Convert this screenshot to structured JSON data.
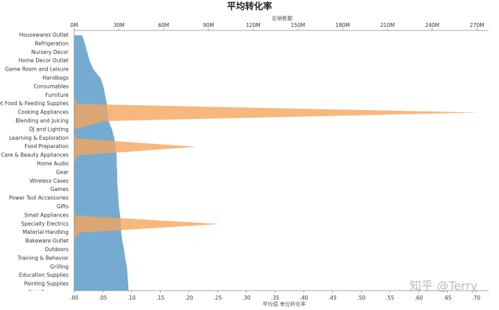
{
  "chart_data": {
    "type": "area",
    "title": "平均转化率",
    "x2_label": "总销售额",
    "x_label": "平均值 单位转化率",
    "watermark": "知乎 @Terry",
    "categories": [
      "Housewares Outlet",
      "Refrigeration",
      "Nursery Decor",
      "Home Decor Outlet",
      "Game Room and Leisure",
      "Handbags",
      "Consumables",
      "Furniture",
      "Pet Food & Feeding Supplies",
      "Cooking Appliances",
      "Blending and Juicing",
      "DJ and Lighting",
      "Learning & Exploration",
      "Food Preparation",
      "Hair Care & Beauty Appliances",
      "Home Audio",
      "Gear",
      "Wireless Cases",
      "Games",
      "Power Tool Accessories",
      "Gifts",
      "Small Appliances",
      "Specialty Electrics",
      "Material Handling",
      "Bakeware Outlet",
      "Outdoors",
      "Training & Behavior",
      "Grilling",
      "Education Supplies",
      "Painting Supplies",
      "Cold Beverages"
    ],
    "series": [
      {
        "color": "#6ea6cf",
        "axis": "x",
        "values": [
          0.014,
          0.019,
          0.023,
          0.027,
          0.034,
          0.046,
          0.051,
          0.054,
          0.057,
          0.058,
          0.06,
          0.066,
          0.07,
          0.072,
          0.074,
          0.074,
          0.075,
          0.075,
          0.076,
          0.077,
          0.078,
          0.08,
          0.081,
          0.082,
          0.084,
          0.087,
          0.089,
          0.092,
          0.093,
          0.094,
          0.095
        ]
      },
      {
        "color": "#f5a45a",
        "axis": "x2",
        "values": [
          0,
          0,
          0,
          0,
          0,
          0,
          0,
          0,
          2,
          272,
          20,
          0,
          1,
          82,
          2,
          0,
          0,
          0,
          0,
          0,
          0,
          1,
          98,
          3,
          0,
          0,
          0,
          0,
          0,
          0,
          0
        ]
      }
    ],
    "xlim": [
      0,
      0.7217
    ],
    "xticks": [
      {
        "value": 0,
        "label": ".00"
      },
      {
        "value": 0.05,
        "label": ".05"
      },
      {
        "value": 0.1,
        "label": ".10"
      },
      {
        "value": 0.15,
        "label": ".15"
      },
      {
        "value": 0.2,
        "label": ".20"
      },
      {
        "value": 0.25,
        "label": ".25"
      },
      {
        "value": 0.3,
        "label": ".30"
      },
      {
        "value": 0.35,
        "label": ".35"
      },
      {
        "value": 0.4,
        "label": ".40"
      },
      {
        "value": 0.45,
        "label": ".45"
      },
      {
        "value": 0.5,
        "label": ".50"
      },
      {
        "value": 0.55,
        "label": ".55"
      },
      {
        "value": 0.6,
        "label": ".60"
      },
      {
        "value": 0.65,
        "label": ".65"
      },
      {
        "value": 0.7,
        "label": ".70"
      }
    ],
    "x2lim": [
      0,
      277.8
    ],
    "x2ticks": [
      {
        "value": 0,
        "label": "0M"
      },
      {
        "value": 30,
        "label": "30M"
      },
      {
        "value": 60,
        "label": "60M"
      },
      {
        "value": 90,
        "label": "90M"
      },
      {
        "value": 120,
        "label": "120M"
      },
      {
        "value": 150,
        "label": "150M"
      },
      {
        "value": 180,
        "label": "180M"
      },
      {
        "value": 210,
        "label": "210M"
      },
      {
        "value": 240,
        "label": "240M"
      },
      {
        "value": 270,
        "label": "270M"
      }
    ]
  }
}
